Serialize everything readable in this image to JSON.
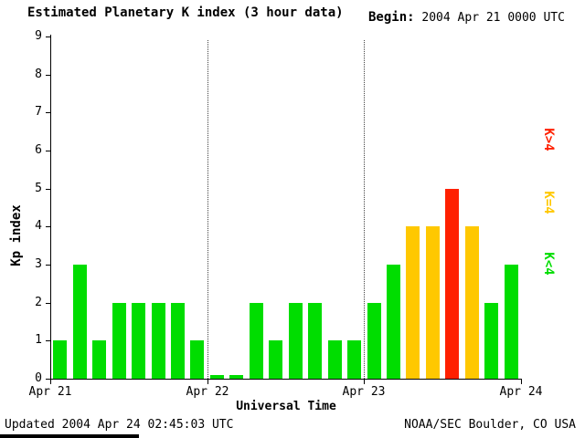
{
  "header": {
    "title": "Estimated Planetary K index (3 hour data)",
    "begin_label": "Begin:",
    "begin_value": " 2004 Apr 21 0000 UTC"
  },
  "footer": {
    "updated": "Updated 2004 Apr 24 02:45:03 UTC",
    "source": "NOAA/SEC Boulder, CO USA"
  },
  "chart_data": {
    "type": "bar",
    "title": "Estimated Planetary K index (3 hour data)",
    "begin": "2004 Apr 21 0000 UTC",
    "xlabel": "Universal Time",
    "ylabel": "Kp index",
    "ylim": [
      0,
      9
    ],
    "y_ticks": [
      0,
      1,
      2,
      3,
      4,
      5,
      6,
      7,
      8,
      9
    ],
    "x_tick_labels": [
      "Apr 21",
      "Apr 22",
      "Apr 23",
      "Apr 24"
    ],
    "hours_per_bar": 3,
    "values": [
      1,
      3,
      1,
      2,
      2,
      2,
      2,
      1,
      0,
      0,
      2,
      1,
      2,
      2,
      1,
      1,
      2,
      3,
      4,
      4,
      5,
      4,
      2,
      3
    ],
    "colors": {
      "low": "#00dd00",
      "mid": "#ffc800",
      "high": "#ff2000"
    },
    "color_rule": "green K<4, yellow K=4, red K>4",
    "grid": "dotted vertical lines at day boundaries",
    "legend_position": "right, rotated",
    "legend": [
      {
        "label": "K>4",
        "color": "#ff2000"
      },
      {
        "label": "K=4",
        "color": "#ffc800"
      },
      {
        "label": "K<4",
        "color": "#00dd00"
      }
    ]
  }
}
